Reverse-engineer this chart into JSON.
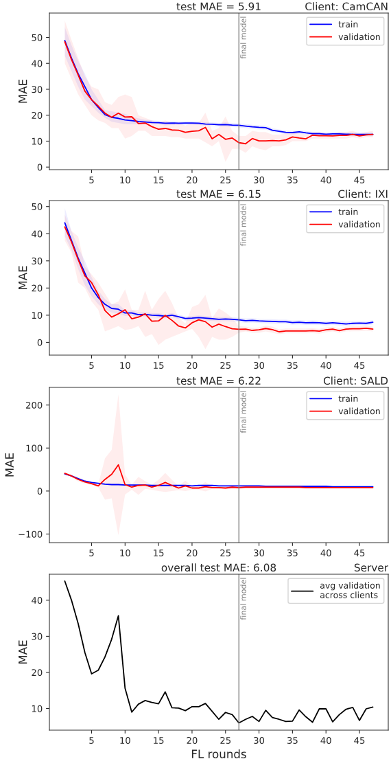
{
  "chart_data": [
    {
      "type": "line",
      "title": "test MAE = 5.91",
      "subtitle": "Client: CamCAN",
      "ylabel": "MAE",
      "x": [
        1,
        2,
        3,
        4,
        5,
        6,
        7,
        8,
        9,
        10,
        11,
        12,
        13,
        14,
        15,
        16,
        17,
        18,
        19,
        20,
        21,
        22,
        23,
        24,
        25,
        26,
        27,
        28,
        29,
        30,
        31,
        32,
        33,
        34,
        35,
        36,
        37,
        38,
        39,
        40,
        41,
        42,
        43,
        44,
        45,
        46,
        47
      ],
      "xlim": [
        -1.3,
        49.3
      ],
      "xticks": [
        5,
        10,
        15,
        20,
        25,
        30,
        35,
        40,
        45
      ],
      "ylim": [
        -1.0,
        59.4
      ],
      "yticks": [
        0,
        10,
        20,
        30,
        40,
        50
      ],
      "legend": "top right",
      "ref_lines": [
        {
          "axis": "x",
          "value": 27,
          "label": "final model",
          "color": "#808080"
        }
      ],
      "series": [
        {
          "name": "train",
          "color": "#0000ff",
          "values": [
            48.8,
            42,
            36,
            31,
            26,
            23,
            20.2,
            19.2,
            18.8,
            18.2,
            17.9,
            17.6,
            17.4,
            17.2,
            17.1,
            16.9,
            17.0,
            16.9,
            17.0,
            17.0,
            16.9,
            16.6,
            16.5,
            16.3,
            16.4,
            16.2,
            16.1,
            15.8,
            15.5,
            15.3,
            15.2,
            14.2,
            13.8,
            13.4,
            13.3,
            13.6,
            13.2,
            12.9,
            12.9,
            12.7,
            12.8,
            12.8,
            12.7,
            12.6,
            12.6,
            12.6,
            12.6
          ],
          "lower": [
            43,
            37,
            31,
            26,
            23.5,
            21,
            19,
            17.5,
            17,
            16.5,
            16.5,
            16.5,
            16.5,
            16.5,
            16.5,
            16,
            16.3,
            16.3,
            16.3,
            16.3,
            16.2,
            16,
            15.8,
            15.6,
            15.6,
            15.4,
            15.3,
            15,
            14.7,
            14.5,
            14.4,
            13.5,
            13.1,
            12.7,
            12.6,
            12.9,
            12.5,
            12.2,
            12.2,
            12,
            12.1,
            12.1,
            12,
            11.9,
            11.9,
            11.9,
            11.9
          ],
          "upper": [
            54,
            47,
            41,
            36,
            30,
            26,
            22,
            21.5,
            21,
            20.5,
            19.5,
            18.8,
            18.3,
            18,
            17.8,
            17.6,
            17.7,
            17.6,
            17.7,
            17.7,
            17.6,
            17.3,
            17.2,
            17,
            17.2,
            17,
            16.9,
            16.6,
            16.3,
            16.1,
            16,
            15,
            14.5,
            14.1,
            14,
            14.3,
            13.9,
            13.6,
            13.6,
            13.4,
            13.5,
            13.5,
            13.4,
            13.3,
            13.3,
            13.3,
            13.3
          ]
        },
        {
          "name": "validation",
          "color": "#ff0000",
          "values": [
            48.3,
            41.5,
            35.5,
            29.3,
            26,
            23.5,
            20.8,
            19.2,
            20.8,
            19.3,
            19.4,
            16.8,
            17.0,
            15.6,
            14.6,
            14.9,
            14.3,
            14.2,
            13.4,
            13.8,
            14.0,
            15.3,
            10.9,
            12.6,
            10.7,
            11.2,
            9.4,
            9.0,
            11.0,
            10.1,
            10.1,
            10.2,
            10.1,
            10.5,
            11.6,
            11.2,
            10.9,
            12.3,
            12.1,
            12.1,
            12.0,
            12.2,
            12.2,
            12.6,
            12.0,
            12.4,
            12.6
          ],
          "lower": [
            40,
            34,
            28,
            24,
            20,
            18,
            17,
            15,
            15,
            11,
            12,
            14,
            14,
            12,
            12,
            12,
            11.5,
            11.5,
            11,
            11,
            11,
            9.5,
            8,
            10,
            2,
            7,
            7,
            5.5,
            8,
            7,
            6.5,
            8,
            8,
            8.5,
            10,
            10,
            10,
            11,
            11,
            11,
            11,
            11,
            11,
            11.5,
            11,
            11.5,
            11.5
          ],
          "upper": [
            56.5,
            49,
            42,
            35,
            31,
            30,
            25,
            24,
            27,
            28,
            27,
            20,
            19,
            18,
            17,
            18,
            17,
            17,
            16,
            17,
            17,
            21,
            14,
            15,
            19.5,
            14,
            12,
            12,
            14,
            13.5,
            13.5,
            12.5,
            12.5,
            13,
            13.5,
            13,
            12.5,
            13.5,
            13.5,
            13,
            13,
            13.5,
            13.5,
            14,
            13,
            13.5,
            14
          ]
        }
      ]
    },
    {
      "type": "line",
      "title": "test MAE = 6.15",
      "subtitle": "Client: IXI",
      "ylabel": "MAE",
      "x": [
        1,
        2,
        3,
        4,
        5,
        6,
        7,
        8,
        9,
        10,
        11,
        12,
        13,
        14,
        15,
        16,
        17,
        18,
        19,
        20,
        21,
        22,
        23,
        24,
        25,
        26,
        27,
        28,
        29,
        30,
        31,
        32,
        33,
        34,
        35,
        36,
        37,
        38,
        39,
        40,
        41,
        42,
        43,
        44,
        45,
        46,
        47
      ],
      "xlim": [
        -1.3,
        49.3
      ],
      "xticks": [
        5,
        10,
        15,
        20,
        25,
        30,
        35,
        40,
        45
      ],
      "ylim": [
        -4.7,
        52.2
      ],
      "yticks": [
        0,
        10,
        20,
        30,
        40,
        50
      ],
      "legend": "top right",
      "ref_lines": [
        {
          "axis": "x",
          "value": 27,
          "label": "final model",
          "color": "#808080"
        }
      ],
      "series": [
        {
          "name": "train",
          "color": "#0000ff",
          "values": [
            44,
            37.5,
            31,
            25.5,
            20,
            16.5,
            14,
            12.5,
            12.2,
            10.8,
            10.8,
            10.2,
            10.3,
            10.0,
            9.9,
            9.6,
            10.0,
            9.4,
            8.8,
            8.9,
            9.1,
            8.9,
            8.7,
            8.5,
            8.6,
            8.5,
            8.3,
            8.0,
            8.1,
            7.9,
            7.8,
            7.7,
            7.6,
            7.6,
            7.3,
            7.4,
            7.2,
            7.3,
            7.2,
            7.0,
            7.2,
            7.0,
            6.8,
            7.0,
            7.1,
            7.0,
            7.4
          ],
          "lower": [
            39,
            34,
            27,
            21,
            17,
            14,
            12,
            11,
            10.5,
            9.8,
            9.8,
            9.3,
            9.5,
            9.2,
            9.1,
            8.8,
            9.2,
            8.6,
            8.0,
            8.1,
            8.3,
            8.1,
            7.9,
            7.7,
            7.8,
            7.7,
            7.5,
            7.2,
            7.3,
            7.1,
            7,
            6.9,
            6.8,
            6.8,
            6.5,
            6.6,
            6.4,
            6.5,
            6.4,
            6.2,
            6.4,
            6.2,
            6,
            6.2,
            6.3,
            6.2,
            6.6
          ],
          "upper": [
            49.5,
            41,
            35,
            30,
            24,
            19,
            16,
            14,
            14,
            12,
            11.8,
            11.1,
            11.1,
            10.8,
            10.7,
            10.4,
            10.8,
            10.2,
            9.6,
            9.7,
            9.9,
            9.7,
            9.5,
            9.3,
            9.4,
            9.3,
            9.1,
            8.8,
            8.9,
            8.7,
            8.6,
            8.5,
            8.4,
            8.4,
            8.1,
            8.2,
            8,
            8.1,
            8,
            7.8,
            8,
            7.8,
            7.6,
            7.8,
            7.9,
            7.8,
            8.2
          ]
        },
        {
          "name": "validation",
          "color": "#ff0000",
          "values": [
            42.5,
            37,
            30.5,
            24.5,
            22,
            17.5,
            11.7,
            9.3,
            10.5,
            12.0,
            8.7,
            9.3,
            10.5,
            7.8,
            7.9,
            9.9,
            8.1,
            6.0,
            5.3,
            7.2,
            8.3,
            7.6,
            5.6,
            6.7,
            5.8,
            5.0,
            4.8,
            4.9,
            4.4,
            4.6,
            5.1,
            4.7,
            3.9,
            4.2,
            4.2,
            4.2,
            4.2,
            4.3,
            4.1,
            4.6,
            4.9,
            4.3,
            4.9,
            5.0,
            5.0,
            5.2,
            4.9
          ],
          "lower": [
            37.5,
            33,
            22,
            20,
            15,
            12,
            4,
            5,
            6,
            4.5,
            5,
            6,
            2,
            3,
            -1,
            1,
            2,
            3,
            4,
            5,
            2,
            -2.5,
            2,
            1,
            1,
            2,
            3.5,
            4,
            3.5,
            3.5,
            4,
            3.5,
            3,
            3.3,
            3.3,
            3.3,
            3.3,
            3.4,
            3.2,
            3.7,
            4,
            3.5,
            4,
            4.1,
            4.1,
            4.3,
            4.0
          ],
          "upper": [
            47,
            41,
            39,
            28,
            25,
            22,
            18,
            14,
            15,
            19.5,
            12,
            12,
            19,
            12,
            16,
            19,
            14.5,
            9,
            7,
            13,
            14,
            17.5,
            9,
            12.5,
            11,
            9,
            6,
            5.8,
            5.3,
            5.5,
            6.2,
            5.8,
            4.8,
            5.1,
            5.1,
            5.1,
            5.1,
            5.2,
            5,
            5.5,
            5.8,
            5.1,
            5.8,
            5.9,
            5.9,
            6.1,
            5.8
          ]
        }
      ]
    },
    {
      "type": "line",
      "title": "test MAE = 6.22",
      "subtitle": "Client: SALD",
      "ylabel": "MAE",
      "x": [
        1,
        2,
        3,
        4,
        5,
        6,
        7,
        8,
        9,
        10,
        11,
        12,
        13,
        14,
        15,
        16,
        17,
        18,
        19,
        20,
        21,
        22,
        23,
        24,
        25,
        26,
        27,
        28,
        29,
        30,
        31,
        32,
        33,
        34,
        35,
        36,
        37,
        38,
        39,
        40,
        41,
        42,
        43,
        44,
        45,
        46,
        47
      ],
      "xlim": [
        -1.3,
        49.3
      ],
      "xticks": [
        5,
        10,
        15,
        20,
        25,
        30,
        35,
        40,
        45
      ],
      "ylim": [
        -120,
        241
      ],
      "yticks": [
        {
          "value": -100,
          "label": "−100"
        },
        0,
        100,
        200
      ],
      "legend": "top right",
      "ref_lines": [
        {
          "axis": "x",
          "value": 27,
          "label": "final model",
          "color": "#808080"
        }
      ],
      "series": [
        {
          "name": "train",
          "color": "#0000ff",
          "values": [
            40,
            35,
            29,
            23,
            20,
            18,
            16,
            15,
            15,
            14,
            14,
            14,
            14,
            13,
            13,
            13,
            13,
            13,
            13,
            12,
            13,
            13,
            13,
            12,
            12,
            12,
            12,
            12,
            12,
            12,
            11,
            11,
            11,
            11,
            11,
            11,
            11,
            11,
            11,
            11,
            10,
            10,
            10,
            10,
            10,
            10,
            10
          ]
        },
        {
          "name": "validation",
          "color": "#ff0000",
          "values": [
            41,
            35,
            27,
            21,
            17,
            12,
            27,
            39,
            61,
            15,
            9,
            13,
            14,
            9,
            13,
            20,
            13,
            7,
            12,
            7,
            7,
            10,
            8,
            8,
            7,
            9,
            8,
            9,
            9,
            9,
            9,
            9,
            9,
            9,
            9,
            9,
            8,
            8,
            8,
            8,
            8,
            8,
            8,
            8,
            8,
            8,
            8
          ],
          "lower": [
            38,
            32,
            22,
            17,
            14,
            8,
            -20,
            -17,
            -103,
            -8,
            3,
            -9,
            5,
            3,
            0,
            -2,
            0,
            2,
            0,
            3,
            3,
            -1,
            5,
            5,
            4,
            5,
            4.5,
            7,
            7,
            7,
            7.5,
            7.5,
            7.5,
            7,
            7,
            7,
            6.5,
            6.5,
            6.5,
            6.5,
            6,
            6,
            6,
            6,
            6.5,
            6,
            6.5
          ],
          "upper": [
            44,
            38,
            32,
            25,
            20,
            16,
            76,
            96,
            225,
            38,
            15,
            33,
            23,
            15,
            26,
            42,
            26,
            12,
            24,
            11,
            11,
            21,
            11,
            10,
            10,
            12,
            10.5,
            10,
            10,
            10,
            10.5,
            10.5,
            10.5,
            10,
            10,
            10,
            9.5,
            9.5,
            9.5,
            9.5,
            9,
            9,
            9,
            9,
            9.5,
            9,
            9.5
          ]
        }
      ]
    },
    {
      "type": "line",
      "title": "overall test MAE: 6.08",
      "subtitle": "Server",
      "xlabel": "FL rounds",
      "ylabel": "MAE",
      "x": [
        1,
        2,
        3,
        4,
        5,
        6,
        7,
        8,
        9,
        10,
        11,
        12,
        13,
        14,
        15,
        16,
        17,
        18,
        19,
        20,
        21,
        22,
        23,
        24,
        25,
        26,
        27,
        28,
        29,
        30,
        31,
        32,
        33,
        34,
        35,
        36,
        37,
        38,
        39,
        40,
        41,
        42,
        43,
        44,
        45,
        46,
        47
      ],
      "xlim": [
        -1.3,
        49.3
      ],
      "xticks": [
        5,
        10,
        15,
        20,
        25,
        30,
        35,
        40,
        45
      ],
      "ylim": [
        4.0,
        47.2
      ],
      "yticks": [
        10,
        20,
        30,
        40
      ],
      "legend": "top right",
      "ref_lines": [
        {
          "axis": "x",
          "value": 27,
          "label": "final model",
          "color": "#808080"
        }
      ],
      "series": [
        {
          "name": "avg validation\nacross clients",
          "color": "#000000",
          "values": [
            45.3,
            40,
            33.5,
            25.5,
            19.6,
            20.6,
            24.3,
            29.2,
            35.7,
            15.6,
            9.0,
            11.2,
            12.2,
            11.7,
            11.3,
            14.6,
            10.2,
            10.1,
            9.4,
            10.5,
            10.5,
            11.4,
            9.2,
            7.0,
            8.9,
            8.3,
            6.0,
            7.0,
            7.8,
            6.4,
            9.5,
            7.5,
            7.0,
            6.4,
            6.5,
            9.6,
            7.7,
            6.2,
            9.9,
            9.9,
            6.3,
            8.3,
            9.8,
            10.3,
            6.7,
            9.9,
            10.4
          ]
        }
      ]
    }
  ]
}
